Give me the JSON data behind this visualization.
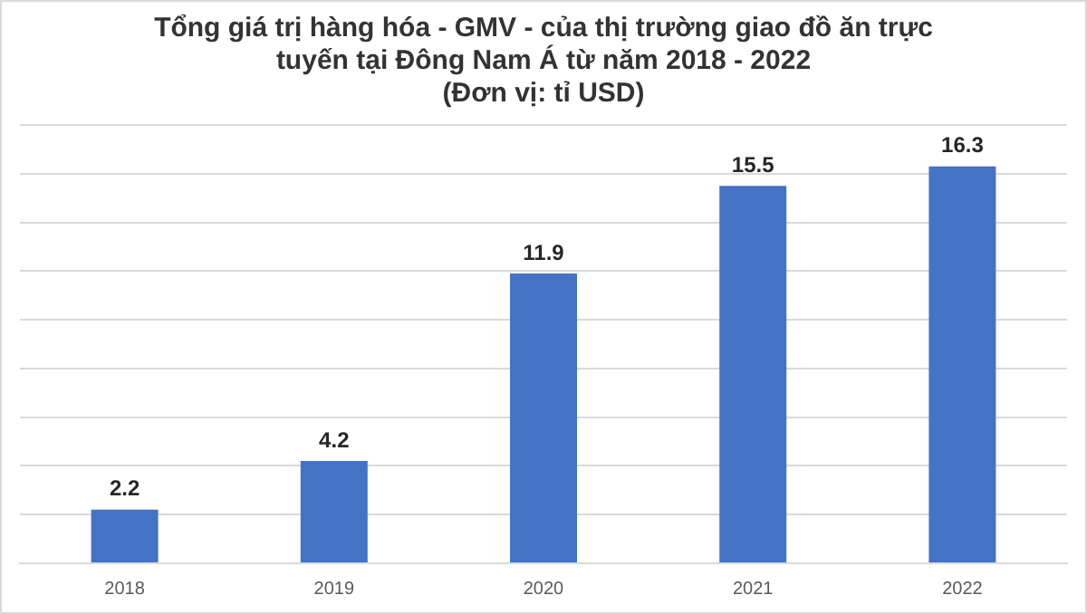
{
  "chart_data": {
    "type": "bar",
    "title": [
      "Tổng giá trị hàng hóa - GMV - của thị trường giao đồ ăn trực",
      "tuyến tại Đông Nam Á từ năm 2018 - 2022",
      "(Đơn vị: tỉ USD)"
    ],
    "categories": [
      "2018",
      "2019",
      "2020",
      "2021",
      "2022"
    ],
    "values": [
      2.2,
      4.2,
      11.9,
      15.5,
      16.3
    ],
    "color": "#4472c4",
    "grid": "y",
    "tick_labels": "x",
    "data_labels": true,
    "legend": false
  }
}
